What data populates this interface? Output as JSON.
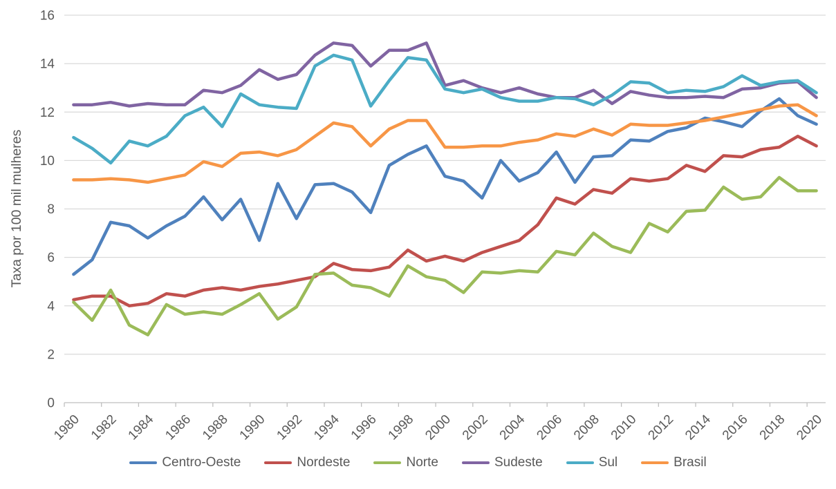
{
  "chart_data": {
    "type": "line",
    "title": "",
    "xlabel": "",
    "ylabel": "Taxa por 100 mil mulheres",
    "ylim": [
      0,
      16
    ],
    "y_ticks": [
      0,
      2,
      4,
      6,
      8,
      10,
      12,
      14,
      16
    ],
    "grid": "horizontal",
    "legend_position": "bottom",
    "x": [
      1980,
      1981,
      1982,
      1983,
      1984,
      1985,
      1986,
      1987,
      1988,
      1989,
      1990,
      1991,
      1992,
      1993,
      1994,
      1995,
      1996,
      1997,
      1998,
      1999,
      2000,
      2001,
      2002,
      2003,
      2004,
      2005,
      2006,
      2007,
      2008,
      2009,
      2010,
      2011,
      2012,
      2013,
      2014,
      2015,
      2016,
      2017,
      2018,
      2019,
      2020
    ],
    "x_tick_labels": [
      "1980",
      "1982",
      "1984",
      "1986",
      "1988",
      "1990",
      "1992",
      "1994",
      "1996",
      "1998",
      "2000",
      "2002",
      "2004",
      "2006",
      "2008",
      "2010",
      "2012",
      "2014",
      "2016",
      "2018",
      "2020"
    ],
    "series": [
      {
        "name": "Centro-Oeste",
        "color": "#4F81BD",
        "values": [
          5.3,
          5.9,
          7.45,
          7.3,
          6.8,
          7.3,
          7.7,
          8.5,
          7.55,
          8.4,
          6.7,
          9.05,
          7.6,
          9.0,
          9.05,
          8.7,
          7.85,
          9.8,
          10.25,
          10.6,
          9.35,
          9.15,
          8.45,
          10.0,
          9.15,
          9.5,
          10.35,
          9.1,
          10.15,
          10.2,
          10.85,
          10.8,
          11.2,
          11.35,
          11.75,
          11.6,
          11.4,
          12.05,
          12.55,
          11.85,
          11.5
        ]
      },
      {
        "name": "Nordeste",
        "color": "#C0504D",
        "values": [
          4.25,
          4.4,
          4.4,
          4.0,
          4.1,
          4.5,
          4.4,
          4.65,
          4.75,
          4.65,
          4.8,
          4.9,
          5.05,
          5.2,
          5.75,
          5.5,
          5.45,
          5.6,
          6.3,
          5.85,
          6.05,
          5.85,
          6.2,
          6.45,
          6.7,
          7.35,
          8.45,
          8.2,
          8.8,
          8.65,
          9.25,
          9.15,
          9.25,
          9.8,
          9.55,
          10.2,
          10.15,
          10.45,
          10.55,
          11.0,
          10.6
        ]
      },
      {
        "name": "Norte",
        "color": "#9BBB59",
        "values": [
          4.15,
          3.4,
          4.65,
          3.2,
          2.8,
          4.05,
          3.65,
          3.75,
          3.65,
          4.05,
          4.5,
          3.45,
          3.95,
          5.3,
          5.35,
          4.85,
          4.75,
          4.4,
          5.65,
          5.2,
          5.05,
          4.55,
          5.4,
          5.35,
          5.45,
          5.4,
          6.25,
          6.1,
          7.0,
          6.45,
          6.2,
          7.4,
          7.05,
          7.9,
          7.95,
          8.9,
          8.4,
          8.5,
          9.3,
          8.75,
          8.75
        ]
      },
      {
        "name": "Sudeste",
        "color": "#8064A2",
        "values": [
          12.3,
          12.3,
          12.4,
          12.25,
          12.35,
          12.3,
          12.3,
          12.9,
          12.8,
          13.1,
          13.75,
          13.35,
          13.55,
          14.35,
          14.85,
          14.75,
          13.9,
          14.55,
          14.55,
          14.85,
          13.1,
          13.3,
          13.0,
          12.8,
          13.0,
          12.75,
          12.6,
          12.6,
          12.9,
          12.35,
          12.85,
          12.7,
          12.6,
          12.6,
          12.65,
          12.6,
          12.95,
          13.0,
          13.2,
          13.25,
          12.6
        ]
      },
      {
        "name": "Sul",
        "color": "#4BACC6",
        "values": [
          10.95,
          10.5,
          9.9,
          10.8,
          10.6,
          11.0,
          11.85,
          12.2,
          11.4,
          12.75,
          12.3,
          12.2,
          12.15,
          13.9,
          14.35,
          14.15,
          12.25,
          13.3,
          14.25,
          14.15,
          12.95,
          12.8,
          12.95,
          12.6,
          12.45,
          12.45,
          12.6,
          12.55,
          12.3,
          12.7,
          13.25,
          13.2,
          12.8,
          12.9,
          12.85,
          13.05,
          13.5,
          13.1,
          13.25,
          13.3,
          12.8
        ]
      },
      {
        "name": "Brasil",
        "color": "#F79646",
        "values": [
          9.2,
          9.2,
          9.25,
          9.2,
          9.1,
          9.25,
          9.4,
          9.95,
          9.75,
          10.3,
          10.35,
          10.2,
          10.45,
          11.0,
          11.55,
          11.4,
          10.6,
          11.3,
          11.65,
          11.65,
          10.55,
          10.55,
          10.6,
          10.6,
          10.75,
          10.85,
          11.1,
          11.0,
          11.3,
          11.05,
          11.5,
          11.45,
          11.45,
          11.55,
          11.65,
          11.8,
          11.95,
          12.1,
          12.25,
          12.3,
          11.85
        ]
      }
    ]
  },
  "colors": {
    "background": "#FFFFFF",
    "text": "#595959",
    "gridline": "#D9D9D9",
    "axis_line": "#BFBFBF"
  }
}
